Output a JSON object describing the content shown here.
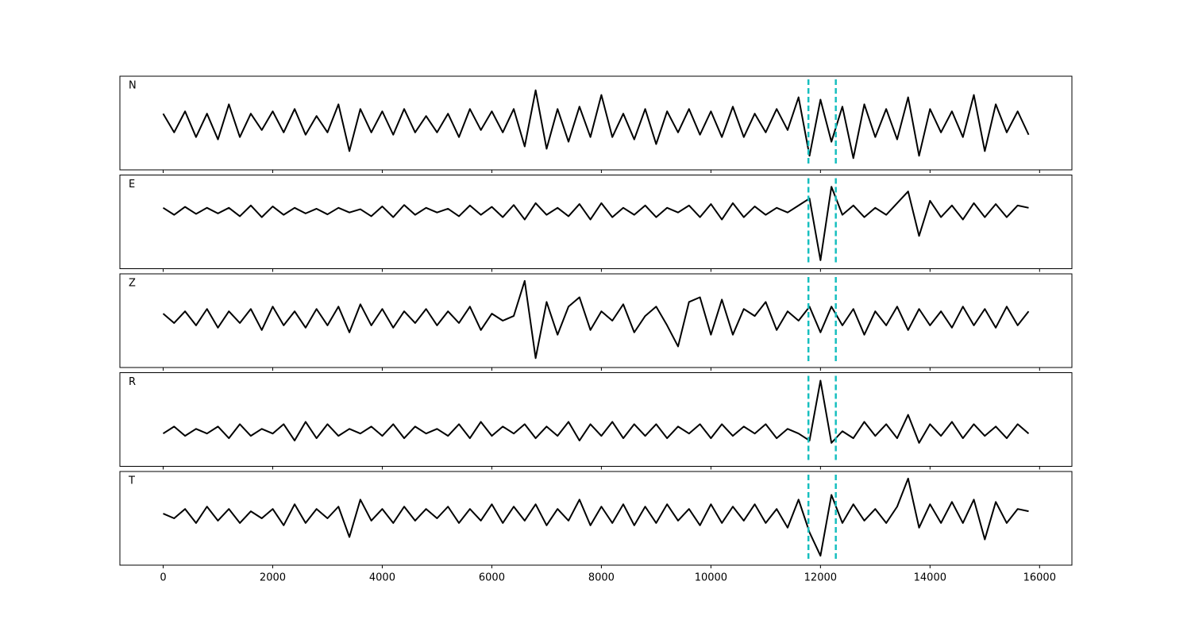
{
  "chart_data": {
    "type": "line",
    "layout": "stacked",
    "x": [
      0,
      200,
      400,
      600,
      800,
      1000,
      1200,
      1400,
      1600,
      1800,
      2000,
      2200,
      2400,
      2600,
      2800,
      3000,
      3200,
      3400,
      3600,
      3800,
      4000,
      4200,
      4400,
      4600,
      4800,
      5000,
      5200,
      5400,
      5600,
      5800,
      6000,
      6200,
      6400,
      6600,
      6800,
      7000,
      7200,
      7400,
      7600,
      7800,
      8000,
      8200,
      8400,
      8600,
      8800,
      9000,
      9200,
      9400,
      9600,
      9800,
      10000,
      10200,
      10400,
      10600,
      10800,
      11000,
      11200,
      11400,
      11600,
      11800,
      12000,
      12200,
      12400,
      12600,
      12800,
      13000,
      13200,
      13400,
      13600,
      13800,
      14000,
      14200,
      14400,
      14600,
      14800,
      15000,
      15200,
      15400,
      15600,
      15800
    ],
    "xlim": [
      -790,
      16590
    ],
    "xticks": [
      0,
      2000,
      4000,
      6000,
      8000,
      10000,
      12000,
      14000,
      16000
    ],
    "ylim": [
      -1,
      1
    ],
    "line_color": "#000000",
    "markers": [
      11780,
      12280
    ],
    "marker_color": "#17bfbf",
    "series": [
      {
        "name": "N",
        "values": [
          0.2,
          -0.2,
          0.25,
          -0.3,
          0.2,
          -0.35,
          0.4,
          -0.3,
          0.2,
          -0.15,
          0.25,
          -0.2,
          0.3,
          -0.25,
          0.15,
          -0.2,
          0.4,
          -0.6,
          0.3,
          -0.2,
          0.25,
          -0.25,
          0.3,
          -0.2,
          0.15,
          -0.2,
          0.2,
          -0.3,
          0.3,
          -0.15,
          0.25,
          -0.2,
          0.3,
          -0.5,
          0.7,
          -0.55,
          0.3,
          -0.4,
          0.35,
          -0.3,
          0.6,
          -0.3,
          0.2,
          -0.35,
          0.3,
          -0.45,
          0.25,
          -0.2,
          0.3,
          -0.25,
          0.25,
          -0.3,
          0.35,
          -0.3,
          0.2,
          -0.2,
          0.3,
          -0.15,
          0.55,
          -0.7,
          0.5,
          -0.4,
          0.35,
          -0.75,
          0.4,
          -0.3,
          0.3,
          -0.35,
          0.55,
          -0.7,
          0.3,
          -0.2,
          0.25,
          -0.3,
          0.6,
          -0.6,
          0.4,
          -0.2,
          0.25,
          -0.25
        ]
      },
      {
        "name": "E",
        "values": [
          0.3,
          0.15,
          0.32,
          0.17,
          0.3,
          0.18,
          0.3,
          0.12,
          0.35,
          0.1,
          0.33,
          0.15,
          0.3,
          0.18,
          0.28,
          0.16,
          0.3,
          0.2,
          0.27,
          0.12,
          0.33,
          0.1,
          0.36,
          0.15,
          0.3,
          0.2,
          0.28,
          0.12,
          0.35,
          0.15,
          0.32,
          0.1,
          0.36,
          0.05,
          0.4,
          0.15,
          0.3,
          0.12,
          0.38,
          0.05,
          0.4,
          0.1,
          0.3,
          0.15,
          0.35,
          0.1,
          0.3,
          0.2,
          0.35,
          0.1,
          0.38,
          0.05,
          0.4,
          0.1,
          0.33,
          0.15,
          0.3,
          0.2,
          0.35,
          0.5,
          -0.82,
          0.75,
          0.15,
          0.35,
          0.1,
          0.3,
          0.15,
          0.4,
          0.65,
          -0.3,
          0.45,
          0.1,
          0.35,
          0.05,
          0.4,
          0.1,
          0.38,
          0.1,
          0.35,
          0.3
        ]
      },
      {
        "name": "Z",
        "values": [
          0.15,
          -0.05,
          0.2,
          -0.1,
          0.25,
          -0.15,
          0.2,
          -0.05,
          0.25,
          -0.2,
          0.3,
          -0.1,
          0.2,
          -0.15,
          0.25,
          -0.1,
          0.3,
          -0.25,
          0.35,
          -0.1,
          0.25,
          -0.15,
          0.2,
          -0.05,
          0.25,
          -0.1,
          0.2,
          -0.05,
          0.3,
          -0.2,
          0.15,
          0.0,
          0.1,
          0.85,
          -0.8,
          0.4,
          -0.3,
          0.3,
          0.5,
          -0.2,
          0.2,
          0.0,
          0.35,
          -0.25,
          0.1,
          0.3,
          -0.1,
          -0.55,
          0.4,
          0.5,
          -0.3,
          0.45,
          -0.3,
          0.25,
          0.1,
          0.4,
          -0.2,
          0.2,
          0.0,
          0.3,
          -0.25,
          0.3,
          -0.1,
          0.25,
          -0.3,
          0.2,
          -0.1,
          0.3,
          -0.2,
          0.25,
          -0.1,
          0.2,
          -0.15,
          0.3,
          -0.1,
          0.25,
          -0.15,
          0.3,
          -0.1,
          0.2
        ]
      },
      {
        "name": "R",
        "values": [
          -0.3,
          -0.15,
          -0.35,
          -0.2,
          -0.3,
          -0.15,
          -0.4,
          -0.1,
          -0.35,
          -0.2,
          -0.3,
          -0.1,
          -0.45,
          -0.05,
          -0.4,
          -0.1,
          -0.35,
          -0.2,
          -0.3,
          -0.15,
          -0.35,
          -0.1,
          -0.4,
          -0.15,
          -0.3,
          -0.2,
          -0.35,
          -0.1,
          -0.4,
          -0.05,
          -0.35,
          -0.15,
          -0.3,
          -0.1,
          -0.4,
          -0.15,
          -0.35,
          -0.05,
          -0.45,
          -0.1,
          -0.35,
          -0.05,
          -0.4,
          -0.1,
          -0.35,
          -0.1,
          -0.4,
          -0.15,
          -0.3,
          -0.1,
          -0.4,
          -0.1,
          -0.35,
          -0.15,
          -0.3,
          -0.1,
          -0.4,
          -0.2,
          -0.3,
          -0.45,
          0.83,
          -0.5,
          -0.25,
          -0.4,
          -0.05,
          -0.35,
          -0.1,
          -0.4,
          0.1,
          -0.5,
          -0.1,
          -0.35,
          -0.05,
          -0.4,
          -0.1,
          -0.35,
          -0.15,
          -0.4,
          -0.1,
          -0.3
        ]
      },
      {
        "name": "T",
        "values": [
          0.1,
          0.0,
          0.2,
          -0.1,
          0.25,
          -0.05,
          0.2,
          -0.1,
          0.15,
          0.0,
          0.2,
          -0.15,
          0.3,
          -0.1,
          0.2,
          0.0,
          0.25,
          -0.4,
          0.4,
          -0.05,
          0.2,
          -0.1,
          0.25,
          -0.05,
          0.2,
          0.0,
          0.25,
          -0.1,
          0.2,
          -0.05,
          0.3,
          -0.1,
          0.25,
          -0.05,
          0.3,
          -0.15,
          0.2,
          -0.05,
          0.4,
          -0.15,
          0.25,
          -0.1,
          0.3,
          -0.15,
          0.25,
          -0.1,
          0.3,
          -0.05,
          0.2,
          -0.15,
          0.3,
          -0.1,
          0.25,
          -0.05,
          0.3,
          -0.1,
          0.2,
          -0.2,
          0.4,
          -0.3,
          -0.8,
          0.5,
          -0.1,
          0.3,
          -0.05,
          0.2,
          -0.1,
          0.25,
          0.85,
          -0.2,
          0.3,
          -0.1,
          0.35,
          -0.1,
          0.4,
          -0.45,
          0.35,
          -0.1,
          0.2,
          0.15
        ]
      }
    ]
  }
}
